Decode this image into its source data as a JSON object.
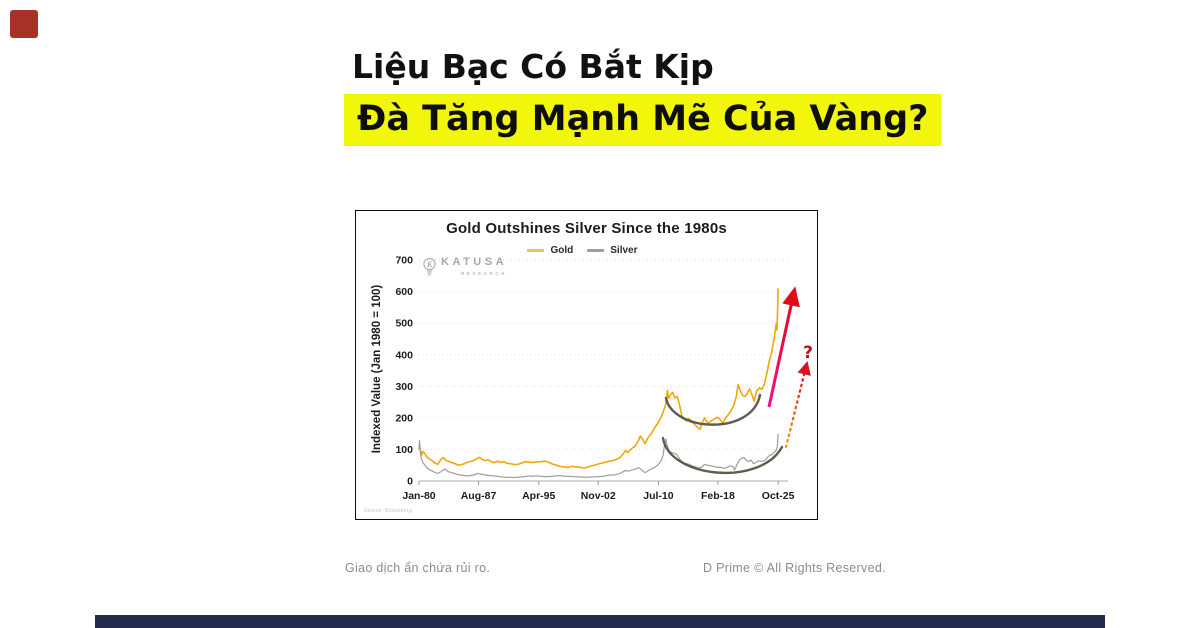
{
  "page": {
    "headline_line1": "Liệu Bạc Có Bắt Kịp",
    "headline_line2": "Đà Tăng Mạnh Mẽ Của Vàng?",
    "highlight_color": "#F2F60A",
    "accent_square_color": "#A93226",
    "footer_bar_color": "#232A4D",
    "footer_left": "Giao dịch ẩn chứa rủi ro.",
    "footer_right": "D Prime © All Rights Reserved."
  },
  "chart": {
    "title": "Gold Outshines Silver Since the 1980s",
    "ylabel": "Indexed Value (Jan 1980 = 100)",
    "source": "Source: Bloomberg",
    "watermark_name": "KATUSA",
    "watermark_sub": "RESEARCH",
    "question_mark": "?"
  },
  "chart_data": {
    "type": "line",
    "title": "Gold Outshines Silver Since the 1980s",
    "xlabel": "",
    "ylabel": "Indexed Value (Jan 1980 = 100)",
    "ylim": [
      0,
      700
    ],
    "xlim": [
      1980,
      2026.3
    ],
    "y_ticks": [
      0,
      100,
      200,
      300,
      400,
      500,
      600,
      700
    ],
    "x_tick_labels": [
      "Jan-80",
      "Aug-87",
      "Apr-95",
      "Nov-02",
      "Jul-10",
      "Feb-18",
      "Oct-25"
    ],
    "x_tick_years": [
      1980,
      1987.58,
      1995.25,
      2002.83,
      2010.5,
      2018.08,
      2025.75
    ],
    "grid": "horizontal-dotted",
    "legend_position": "top-center",
    "legend": {
      "gold_dash_color": "#E5C35A",
      "silver_dash_color": "#9E9EA2"
    },
    "series": [
      {
        "name": "Gold",
        "color": "#F2A60C",
        "points": [
          [
            1980,
            100
          ],
          [
            1980.08,
            115
          ],
          [
            1980.2,
            95
          ],
          [
            1980.35,
            83
          ],
          [
            1980.5,
            93
          ],
          [
            1980.7,
            88
          ],
          [
            1981,
            76
          ],
          [
            1981.3,
            70
          ],
          [
            1981.6,
            66
          ],
          [
            1982,
            57
          ],
          [
            1982.4,
            53
          ],
          [
            1982.8,
            68
          ],
          [
            1983.1,
            74
          ],
          [
            1983.4,
            66
          ],
          [
            1983.8,
            62
          ],
          [
            1984.2,
            58
          ],
          [
            1984.6,
            55
          ],
          [
            1985,
            50
          ],
          [
            1985.4,
            52
          ],
          [
            1985.8,
            55
          ],
          [
            1986.2,
            60
          ],
          [
            1986.6,
            62
          ],
          [
            1987,
            66
          ],
          [
            1987.4,
            71
          ],
          [
            1987.7,
            75
          ],
          [
            1988,
            69
          ],
          [
            1988.4,
            65
          ],
          [
            1988.8,
            67
          ],
          [
            1989.2,
            61
          ],
          [
            1989.6,
            58
          ],
          [
            1990,
            63
          ],
          [
            1990.4,
            59
          ],
          [
            1990.8,
            61
          ],
          [
            1991.2,
            56
          ],
          [
            1991.6,
            55
          ],
          [
            1992,
            53
          ],
          [
            1992.5,
            52
          ],
          [
            1993,
            56
          ],
          [
            1993.5,
            61
          ],
          [
            1994,
            60
          ],
          [
            1994.5,
            59
          ],
          [
            1995,
            60
          ],
          [
            1995.5,
            61
          ],
          [
            1996,
            63
          ],
          [
            1996.5,
            60
          ],
          [
            1997,
            54
          ],
          [
            1997.5,
            50
          ],
          [
            1998,
            46
          ],
          [
            1998.5,
            45
          ],
          [
            1999,
            42
          ],
          [
            1999.4,
            47
          ],
          [
            1999.8,
            45
          ],
          [
            2000.2,
            44
          ],
          [
            2000.6,
            43
          ],
          [
            2001,
            41
          ],
          [
            2001.5,
            44
          ],
          [
            2002,
            48
          ],
          [
            2002.5,
            51
          ],
          [
            2003,
            55
          ],
          [
            2003.5,
            58
          ],
          [
            2004,
            61
          ],
          [
            2004.5,
            64
          ],
          [
            2005,
            67
          ],
          [
            2005.5,
            72
          ],
          [
            2006,
            85
          ],
          [
            2006.3,
            97
          ],
          [
            2006.6,
            90
          ],
          [
            2007,
            101
          ],
          [
            2007.5,
            110
          ],
          [
            2007.9,
            125
          ],
          [
            2008.2,
            143
          ],
          [
            2008.5,
            132
          ],
          [
            2008.8,
            118
          ],
          [
            2009.2,
            138
          ],
          [
            2009.6,
            150
          ],
          [
            2010,
            168
          ],
          [
            2010.4,
            182
          ],
          [
            2010.8,
            200
          ],
          [
            2011.1,
            218
          ],
          [
            2011.4,
            240
          ],
          [
            2011.65,
            287
          ],
          [
            2011.8,
            262
          ],
          [
            2012,
            272
          ],
          [
            2012.3,
            281
          ],
          [
            2012.6,
            263
          ],
          [
            2012.9,
            268
          ],
          [
            2013.2,
            240
          ],
          [
            2013.5,
            205
          ],
          [
            2013.8,
            196
          ],
          [
            2014.1,
            190
          ],
          [
            2014.4,
            198
          ],
          [
            2014.7,
            187
          ],
          [
            2015,
            182
          ],
          [
            2015.4,
            172
          ],
          [
            2015.8,
            164
          ],
          [
            2016.1,
            186
          ],
          [
            2016.4,
            200
          ],
          [
            2016.8,
            182
          ],
          [
            2017.2,
            190
          ],
          [
            2017.6,
            196
          ],
          [
            2018,
            202
          ],
          [
            2018.4,
            194
          ],
          [
            2018.7,
            182
          ],
          [
            2019,
            198
          ],
          [
            2019.4,
            210
          ],
          [
            2019.8,
            225
          ],
          [
            2020.1,
            240
          ],
          [
            2020.4,
            265
          ],
          [
            2020.65,
            305
          ],
          [
            2020.9,
            288
          ],
          [
            2021.2,
            272
          ],
          [
            2021.5,
            268
          ],
          [
            2021.8,
            276
          ],
          [
            2022.1,
            292
          ],
          [
            2022.4,
            275
          ],
          [
            2022.7,
            252
          ],
          [
            2023,
            285
          ],
          [
            2023.4,
            295
          ],
          [
            2023.7,
            290
          ],
          [
            2024,
            308
          ],
          [
            2024.3,
            340
          ],
          [
            2024.6,
            378
          ],
          [
            2024.9,
            405
          ],
          [
            2025.1,
            432
          ],
          [
            2025.3,
            460
          ],
          [
            2025.5,
            498
          ],
          [
            2025.6,
            478
          ],
          [
            2025.68,
            540
          ],
          [
            2025.75,
            610
          ]
        ]
      },
      {
        "name": "Silver",
        "color": "#A0A0A0",
        "points": [
          [
            1980,
            100
          ],
          [
            1980.06,
            128
          ],
          [
            1980.15,
            92
          ],
          [
            1980.3,
            70
          ],
          [
            1980.5,
            58
          ],
          [
            1980.7,
            52
          ],
          [
            1981,
            42
          ],
          [
            1981.4,
            35
          ],
          [
            1981.8,
            30
          ],
          [
            1982.2,
            24
          ],
          [
            1982.6,
            26
          ],
          [
            1983,
            34
          ],
          [
            1983.3,
            38
          ],
          [
            1983.7,
            30
          ],
          [
            1984.1,
            27
          ],
          [
            1984.5,
            24
          ],
          [
            1985,
            20
          ],
          [
            1985.5,
            18
          ],
          [
            1986,
            16
          ],
          [
            1986.5,
            17
          ],
          [
            1987,
            19
          ],
          [
            1987.5,
            24
          ],
          [
            1988,
            21
          ],
          [
            1988.5,
            19
          ],
          [
            1989,
            17
          ],
          [
            1989.5,
            16
          ],
          [
            1990,
            15
          ],
          [
            1990.5,
            13
          ],
          [
            1991,
            12
          ],
          [
            1991.5,
            12
          ],
          [
            1992,
            11
          ],
          [
            1992.5,
            12
          ],
          [
            1993,
            13
          ],
          [
            1993.5,
            14
          ],
          [
            1994,
            16
          ],
          [
            1994.5,
            15
          ],
          [
            1995,
            16
          ],
          [
            1995.5,
            15
          ],
          [
            1996,
            14
          ],
          [
            1996.5,
            14
          ],
          [
            1997,
            15
          ],
          [
            1997.5,
            16
          ],
          [
            1998,
            17
          ],
          [
            1998.5,
            15
          ],
          [
            1999,
            15
          ],
          [
            1999.5,
            14
          ],
          [
            2000,
            14
          ],
          [
            2000.5,
            13
          ],
          [
            2001,
            12
          ],
          [
            2001.5,
            12
          ],
          [
            2002,
            13
          ],
          [
            2002.5,
            13
          ],
          [
            2003,
            14
          ],
          [
            2003.5,
            15
          ],
          [
            2004,
            18
          ],
          [
            2004.5,
            19
          ],
          [
            2005,
            20
          ],
          [
            2005.5,
            23
          ],
          [
            2006,
            29
          ],
          [
            2006.3,
            34
          ],
          [
            2006.6,
            31
          ],
          [
            2007,
            34
          ],
          [
            2007.5,
            37
          ],
          [
            2008,
            42
          ],
          [
            2008.4,
            35
          ],
          [
            2008.8,
            26
          ],
          [
            2009.2,
            33
          ],
          [
            2009.6,
            38
          ],
          [
            2010,
            43
          ],
          [
            2010.4,
            50
          ],
          [
            2010.8,
            62
          ],
          [
            2011.1,
            82
          ],
          [
            2011.3,
            118
          ],
          [
            2011.45,
            133
          ],
          [
            2011.6,
            112
          ],
          [
            2011.8,
            100
          ],
          [
            2012,
            92
          ],
          [
            2012.4,
            88
          ],
          [
            2012.8,
            85
          ],
          [
            2013.2,
            70
          ],
          [
            2013.6,
            58
          ],
          [
            2014,
            55
          ],
          [
            2014.4,
            53
          ],
          [
            2014.8,
            48
          ],
          [
            2015.2,
            45
          ],
          [
            2015.6,
            41
          ],
          [
            2016,
            44
          ],
          [
            2016.4,
            53
          ],
          [
            2016.8,
            49
          ],
          [
            2017.2,
            48
          ],
          [
            2017.6,
            46
          ],
          [
            2018,
            43
          ],
          [
            2018.4,
            44
          ],
          [
            2018.8,
            40
          ],
          [
            2019.2,
            42
          ],
          [
            2019.6,
            48
          ],
          [
            2020,
            45
          ],
          [
            2020.2,
            35
          ],
          [
            2020.5,
            52
          ],
          [
            2020.8,
            66
          ],
          [
            2021.1,
            72
          ],
          [
            2021.4,
            74
          ],
          [
            2021.7,
            66
          ],
          [
            2022,
            62
          ],
          [
            2022.3,
            66
          ],
          [
            2022.6,
            55
          ],
          [
            2022.9,
            58
          ],
          [
            2023.2,
            64
          ],
          [
            2023.5,
            62
          ],
          [
            2023.8,
            63
          ],
          [
            2024.1,
            66
          ],
          [
            2024.4,
            75
          ],
          [
            2024.7,
            82
          ],
          [
            2025,
            84
          ],
          [
            2025.2,
            90
          ],
          [
            2025.4,
            94
          ],
          [
            2025.55,
            100
          ],
          [
            2025.65,
            110
          ],
          [
            2025.75,
            150
          ]
        ]
      }
    ],
    "annotations": {
      "question_mark": "?",
      "cup_arcs": [
        "gold-consolidation-cup",
        "silver-consolidation-cup"
      ],
      "arrows": [
        {
          "name": "gold-surge-arrow",
          "style": "solid",
          "color_from": "#F20D8A",
          "color_to": "#E30918"
        },
        {
          "name": "silver-projection-arrow",
          "style": "dotted",
          "color_from": "#F0A202",
          "color_to": "#D8131F"
        }
      ]
    }
  }
}
